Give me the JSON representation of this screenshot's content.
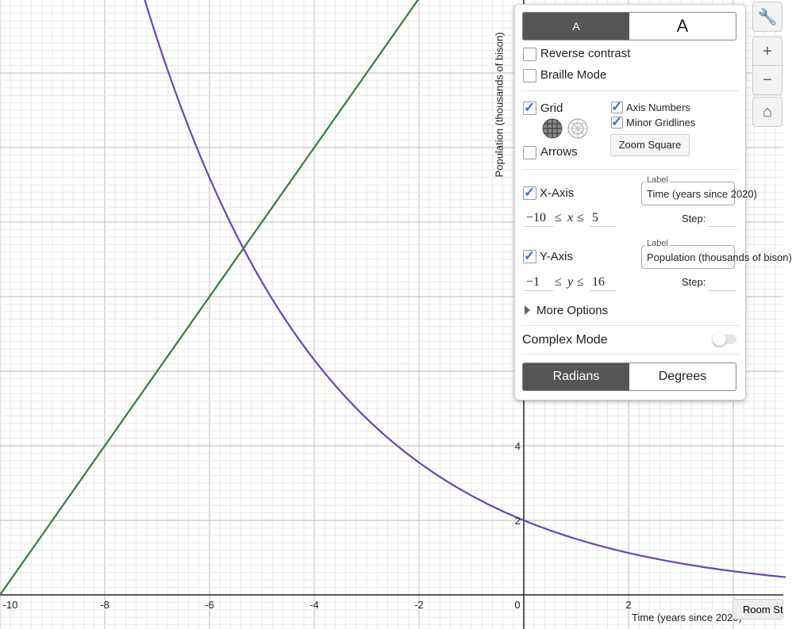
{
  "graph": {
    "x_tick_labels": [
      "-10",
      "-8",
      "-6",
      "-4",
      "-2",
      "0",
      "2"
    ],
    "y_tick_labels": [
      "2",
      "4"
    ],
    "x_axis_label": "Time (years since 2020)",
    "y_axis_label": "Population (thousands of bison)"
  },
  "settings_panel": {
    "font_small": "A",
    "font_large": "A",
    "reverse_contrast": "Reverse contrast",
    "braille_mode": "Braille Mode",
    "grid": "Grid",
    "arrows": "Arrows",
    "axis_numbers": "Axis Numbers",
    "minor_gridlines": "Minor Gridlines",
    "zoom_square": "Zoom Square",
    "x_axis": {
      "title": "X-Axis",
      "label_caption": "Label",
      "label_value": "Time (years since 2020)",
      "min": "−10",
      "le": "≤",
      "variable": "x",
      "max": "5",
      "step": "Step:"
    },
    "y_axis": {
      "title": "Y-Axis",
      "label_caption": "Label",
      "label_value": "Population (thousands of bison)",
      "min": "−1",
      "le": "≤",
      "variable": "y",
      "max": "16",
      "step": "Step:"
    },
    "more_options": "More Options",
    "complex_mode": "Complex Mode",
    "radians": "Radians",
    "degrees": "Degrees"
  },
  "tooltip": "Room St"
}
